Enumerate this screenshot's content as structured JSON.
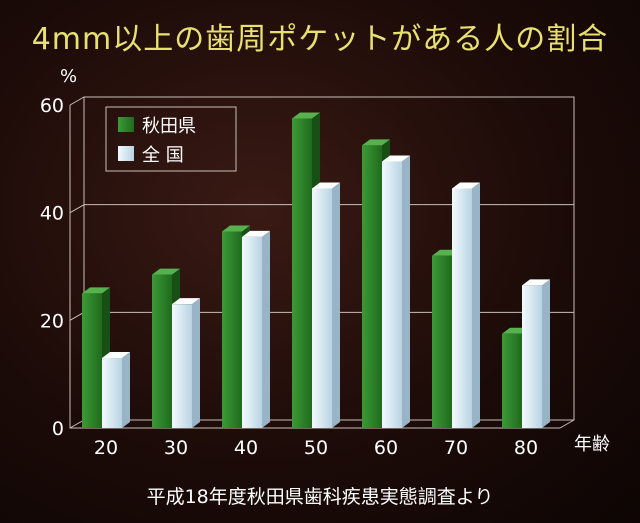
{
  "title": "4mm以上の歯周ポケットがある人の割合",
  "source_note": "平成18年度秋田県歯科疾患実態調査より",
  "chart_data": {
    "type": "bar",
    "y_unit": "%",
    "xlabel": "年齢",
    "categories": [
      "20",
      "30",
      "40",
      "50",
      "60",
      "70",
      "80"
    ],
    "series": [
      {
        "name": "秋田県",
        "values": [
          25,
          28.5,
          36.5,
          57.5,
          52.5,
          32,
          17.5
        ],
        "color": "#2f8a2b"
      },
      {
        "name": "全 国",
        "values": [
          13,
          23,
          35.5,
          44.5,
          49.5,
          44.5,
          26.5
        ],
        "color": "#d8ecf6"
      }
    ],
    "ylim": [
      0,
      60
    ],
    "yticks": [
      0,
      20,
      40,
      60
    ],
    "grid": true,
    "legend_position": "top-left"
  }
}
